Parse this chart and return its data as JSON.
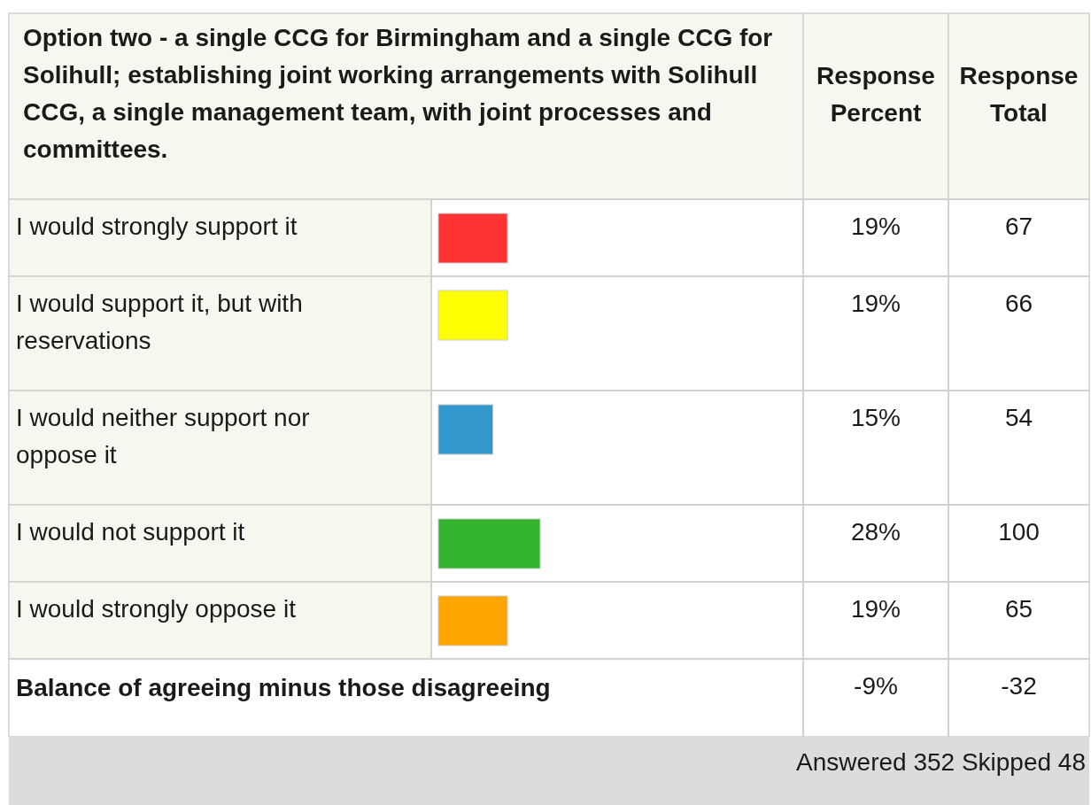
{
  "chart_data": {
    "type": "bar",
    "orientation": "horizontal",
    "title": "Option two - a single CCG for Birmingham and a single CCG for Solihull; establishing joint working arrangements with Solihull CCG, a single management team, with joint processes and committees.",
    "categories": [
      "I would strongly support it",
      "I would support it, but with reservations",
      "I would neither support nor oppose it",
      "I would not support it",
      "I would strongly oppose it"
    ],
    "values": [
      19,
      19,
      15,
      28,
      19
    ],
    "colors": [
      "#ff3333",
      "#ffff00",
      "#3399cc",
      "#33b42e",
      "#ffa500"
    ],
    "value_labels": [
      "19%",
      "19%",
      "15%",
      "28%",
      "19%"
    ],
    "annotations": [
      "Response Percent",
      "Response Total",
      "67",
      "66",
      "54",
      "100",
      "65",
      "Balance of agreeing minus those disagreeing",
      "-9%",
      "-32",
      "Answered  352 Skipped 48"
    ]
  }
}
